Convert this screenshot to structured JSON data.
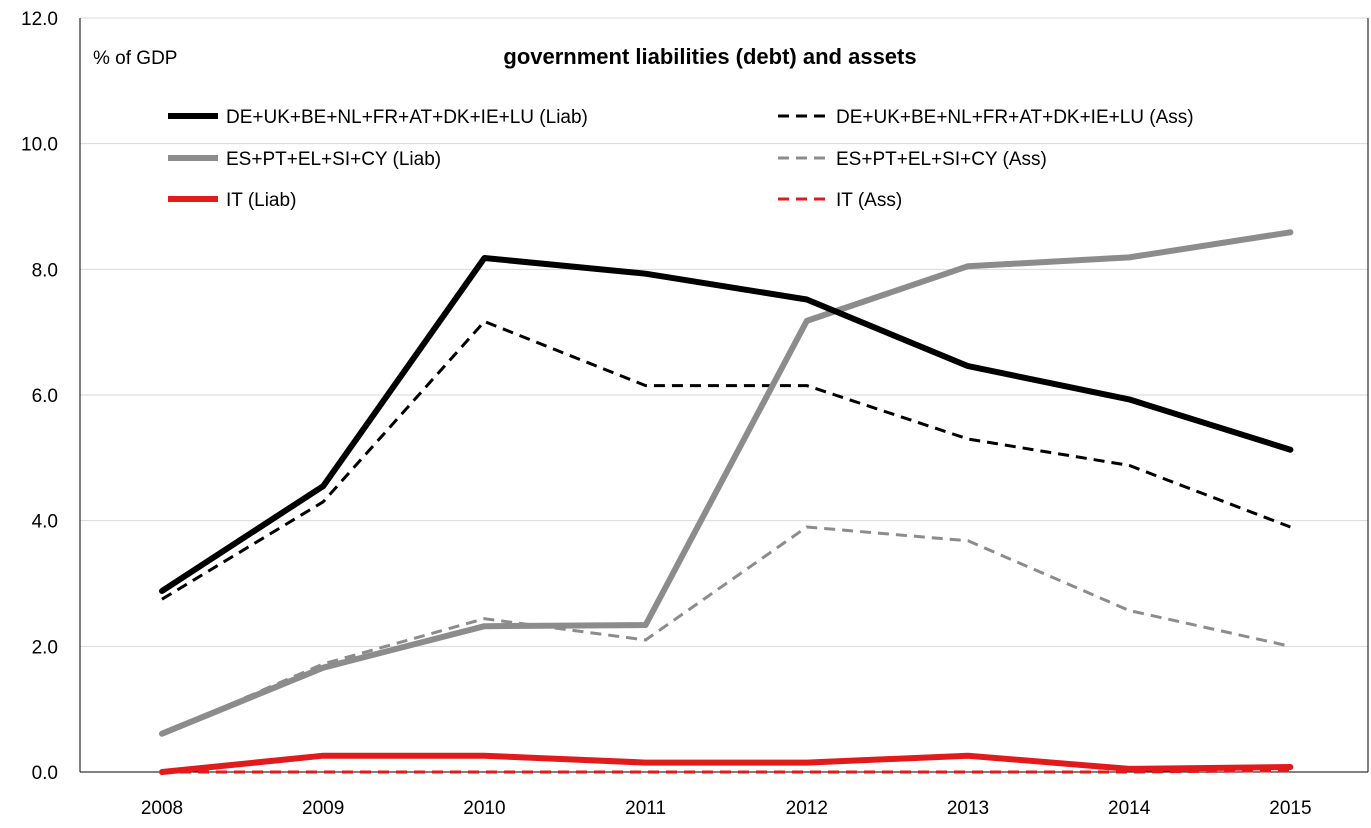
{
  "chart_data": {
    "type": "line",
    "title": "government liabilities (debt) and assets",
    "ylabel": "% of GDP",
    "xlabel": "",
    "categories": [
      "2008",
      "2009",
      "2010",
      "2011",
      "2012",
      "2013",
      "2014",
      "2015"
    ],
    "ylim": [
      0,
      12
    ],
    "yticks": [
      0,
      2,
      4,
      6,
      8,
      10,
      12
    ],
    "ytick_labels": [
      "0.0",
      "2.0",
      "4.0",
      "6.0",
      "8.0",
      "10.0",
      "12.0"
    ],
    "grid": "horizontal",
    "legend_position": "top",
    "series": [
      {
        "name": "DE+UK+BE+NL+FR+AT+DK+IE+LU (Liab)",
        "values": [
          2.88,
          4.55,
          8.18,
          7.93,
          7.52,
          6.46,
          5.93,
          5.13
        ],
        "color": "#000000",
        "style": "solid"
      },
      {
        "name": "DE+UK+BE+NL+FR+AT+DK+IE+LU (Ass)",
        "values": [
          2.75,
          4.3,
          7.17,
          6.15,
          6.15,
          5.3,
          4.88,
          3.9
        ],
        "color": "#000000",
        "style": "dashed"
      },
      {
        "name": "ES+PT+EL+SI+CY (Liab)",
        "values": [
          0.61,
          1.66,
          2.32,
          2.34,
          7.18,
          8.05,
          8.19,
          8.59
        ],
        "color": "#8c8c8c",
        "style": "solid"
      },
      {
        "name": "ES+PT+EL+SI+CY (Ass)",
        "values": [
          0.61,
          1.72,
          2.44,
          2.1,
          3.9,
          3.68,
          2.57,
          2.0
        ],
        "color": "#8c8c8c",
        "style": "dashed"
      },
      {
        "name": "IT (Liab)",
        "values": [
          0.0,
          0.26,
          0.26,
          0.15,
          0.15,
          0.26,
          0.05,
          0.08
        ],
        "color": "#e31a1c",
        "style": "solid"
      },
      {
        "name": "IT (Ass)",
        "values": [
          0.0,
          0.0,
          0.0,
          0.0,
          0.0,
          0.0,
          0.0,
          0.02
        ],
        "color": "#e31a1c",
        "style": "dashed"
      }
    ]
  }
}
